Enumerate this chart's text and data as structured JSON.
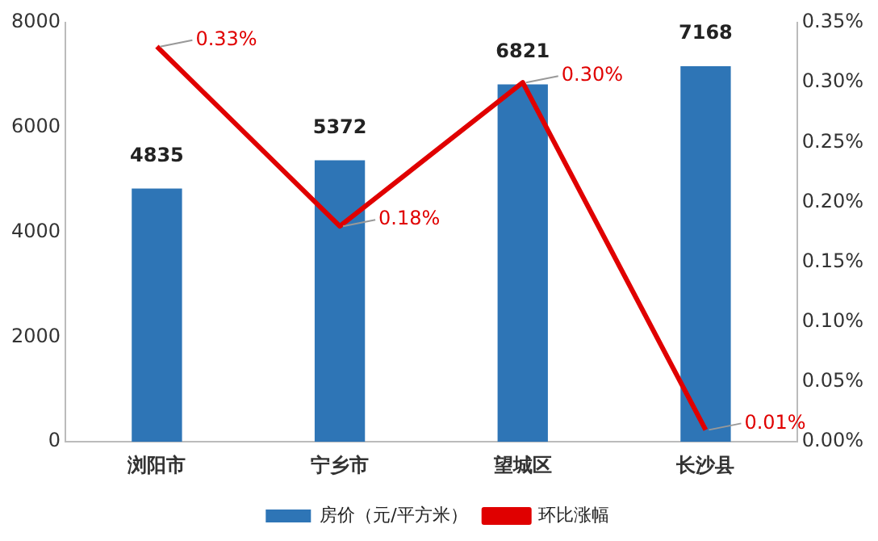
{
  "chart_data": {
    "type": "bar",
    "categories": [
      "浏阳市",
      "宁乡市",
      "望城区",
      "长沙县"
    ],
    "series": [
      {
        "name": "房价（元/平方米）",
        "color": "#2e75b6",
        "values": [
          4835,
          5372,
          6821,
          7168
        ],
        "value_labels": [
          "4835",
          "5372",
          "6821",
          "7168"
        ]
      },
      {
        "name": "环比涨幅",
        "type": "line",
        "axis": "y2",
        "color": "#e00000",
        "marker": "none",
        "values": [
          0.33,
          0.18,
          0.3,
          0.01
        ],
        "value_labels": [
          "0.33%",
          "0.18%",
          "0.30%",
          "0.01%"
        ]
      }
    ],
    "ylim": [
      0,
      8000
    ],
    "yticks": [
      0,
      2000,
      4000,
      6000,
      8000
    ],
    "y2lim": [
      0,
      0.35
    ],
    "y2ticks": [
      {
        "value": 0,
        "label": "0.00%"
      },
      {
        "value": 0.05,
        "label": "0.05%"
      },
      {
        "value": 0.1,
        "label": "0.10%"
      },
      {
        "value": 0.15,
        "label": "0.15%"
      },
      {
        "value": 0.2,
        "label": "0.20%"
      },
      {
        "value": 0.25,
        "label": "0.25%"
      },
      {
        "value": 0.3,
        "label": "0.30%"
      },
      {
        "value": 0.35,
        "label": "0.35%"
      }
    ],
    "grid": false,
    "legend": "bottom"
  }
}
